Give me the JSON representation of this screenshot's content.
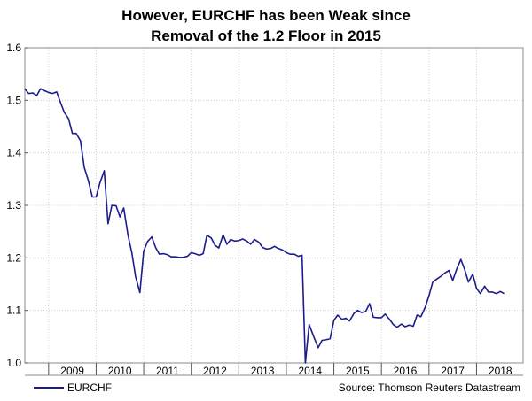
{
  "chart_data": {
    "type": "line",
    "title_lines": [
      "However, EURCHF has been Weak since",
      "Removal of the 1.2 Floor in 2015"
    ],
    "xlabel": "",
    "ylabel": "",
    "xlim": [
      2008.5,
      2018.98
    ],
    "ylim": [
      1.0,
      1.6
    ],
    "y_ticks": [
      "1.0",
      "1.1",
      "1.2",
      "1.3",
      "1.4",
      "1.5",
      "1.6"
    ],
    "x_tick_labels": [
      "2009",
      "2010",
      "2011",
      "2012",
      "2013",
      "2014",
      "2015",
      "2016",
      "2017",
      "2018"
    ],
    "grid": true,
    "legend_position": "bottom-left",
    "source": "Source: Thomson Reuters Datastream",
    "series": [
      {
        "name": "EURCHF",
        "color": "#1c1c8c",
        "points": [
          [
            2008.5,
            1.522
          ],
          [
            2008.58,
            1.513
          ],
          [
            2008.67,
            1.514
          ],
          [
            2008.75,
            1.509
          ],
          [
            2008.83,
            1.522
          ],
          [
            2008.92,
            1.518
          ],
          [
            2009.0,
            1.515
          ],
          [
            2009.08,
            1.513
          ],
          [
            2009.17,
            1.516
          ],
          [
            2009.25,
            1.496
          ],
          [
            2009.33,
            1.477
          ],
          [
            2009.42,
            1.465
          ],
          [
            2009.5,
            1.437
          ],
          [
            2009.58,
            1.437
          ],
          [
            2009.67,
            1.423
          ],
          [
            2009.75,
            1.372
          ],
          [
            2009.83,
            1.349
          ],
          [
            2009.92,
            1.316
          ],
          [
            2010.0,
            1.316
          ],
          [
            2010.08,
            1.343
          ],
          [
            2010.17,
            1.366
          ],
          [
            2010.25,
            1.265
          ],
          [
            2010.33,
            1.3
          ],
          [
            2010.42,
            1.299
          ],
          [
            2010.5,
            1.278
          ],
          [
            2010.58,
            1.295
          ],
          [
            2010.67,
            1.243
          ],
          [
            2010.75,
            1.21
          ],
          [
            2010.83,
            1.164
          ],
          [
            2010.92,
            1.134
          ],
          [
            2011.0,
            1.213
          ],
          [
            2011.08,
            1.231
          ],
          [
            2011.17,
            1.24
          ],
          [
            2011.25,
            1.22
          ],
          [
            2011.33,
            1.207
          ],
          [
            2011.42,
            1.208
          ],
          [
            2011.5,
            1.206
          ],
          [
            2011.58,
            1.202
          ],
          [
            2011.67,
            1.202
          ],
          [
            2011.75,
            1.201
          ],
          [
            2011.83,
            1.201
          ],
          [
            2011.92,
            1.203
          ],
          [
            2012.0,
            1.21
          ],
          [
            2012.08,
            1.208
          ],
          [
            2012.17,
            1.205
          ],
          [
            2012.25,
            1.208
          ],
          [
            2012.33,
            1.243
          ],
          [
            2012.42,
            1.238
          ],
          [
            2012.5,
            1.224
          ],
          [
            2012.58,
            1.219
          ],
          [
            2012.67,
            1.244
          ],
          [
            2012.75,
            1.226
          ],
          [
            2012.83,
            1.235
          ],
          [
            2012.92,
            1.232
          ],
          [
            2013.0,
            1.233
          ],
          [
            2013.08,
            1.236
          ],
          [
            2013.17,
            1.232
          ],
          [
            2013.25,
            1.226
          ],
          [
            2013.33,
            1.235
          ],
          [
            2013.42,
            1.23
          ],
          [
            2013.5,
            1.22
          ],
          [
            2013.58,
            1.217
          ],
          [
            2013.67,
            1.218
          ],
          [
            2013.75,
            1.222
          ],
          [
            2013.83,
            1.218
          ],
          [
            2013.92,
            1.215
          ],
          [
            2014.0,
            1.21
          ],
          [
            2014.08,
            1.207
          ],
          [
            2014.17,
            1.207
          ],
          [
            2014.25,
            1.203
          ],
          [
            2014.33,
            1.205
          ],
          [
            2014.4,
            1.0
          ],
          [
            2014.48,
            1.073
          ],
          [
            2014.58,
            1.049
          ],
          [
            2014.67,
            1.029
          ],
          [
            2014.75,
            1.043
          ],
          [
            2014.83,
            1.044
          ],
          [
            2014.92,
            1.046
          ],
          [
            2015.0,
            1.081
          ],
          [
            2015.08,
            1.091
          ],
          [
            2015.17,
            1.083
          ],
          [
            2015.25,
            1.085
          ],
          [
            2015.33,
            1.08
          ],
          [
            2015.42,
            1.094
          ],
          [
            2015.5,
            1.1
          ],
          [
            2015.58,
            1.096
          ],
          [
            2015.67,
            1.098
          ],
          [
            2015.75,
            1.113
          ],
          [
            2015.83,
            1.087
          ],
          [
            2015.92,
            1.086
          ],
          [
            2016.0,
            1.086
          ],
          [
            2016.08,
            1.093
          ],
          [
            2016.17,
            1.083
          ],
          [
            2016.25,
            1.073
          ],
          [
            2016.33,
            1.068
          ],
          [
            2016.42,
            1.074
          ],
          [
            2016.5,
            1.069
          ],
          [
            2016.58,
            1.072
          ],
          [
            2016.67,
            1.07
          ],
          [
            2016.75,
            1.091
          ],
          [
            2016.83,
            1.088
          ],
          [
            2016.92,
            1.106
          ],
          [
            2017.0,
            1.128
          ],
          [
            2017.08,
            1.154
          ],
          [
            2017.17,
            1.16
          ],
          [
            2017.25,
            1.165
          ],
          [
            2017.33,
            1.171
          ],
          [
            2017.42,
            1.176
          ],
          [
            2017.5,
            1.157
          ],
          [
            2017.58,
            1.178
          ],
          [
            2017.67,
            1.197
          ],
          [
            2017.75,
            1.178
          ],
          [
            2017.83,
            1.154
          ],
          [
            2017.92,
            1.169
          ],
          [
            2018.0,
            1.142
          ],
          [
            2018.08,
            1.132
          ],
          [
            2018.17,
            1.146
          ],
          [
            2018.25,
            1.135
          ],
          [
            2018.33,
            1.135
          ],
          [
            2018.42,
            1.132
          ],
          [
            2018.5,
            1.136
          ],
          [
            2018.58,
            1.132
          ]
        ]
      }
    ]
  }
}
